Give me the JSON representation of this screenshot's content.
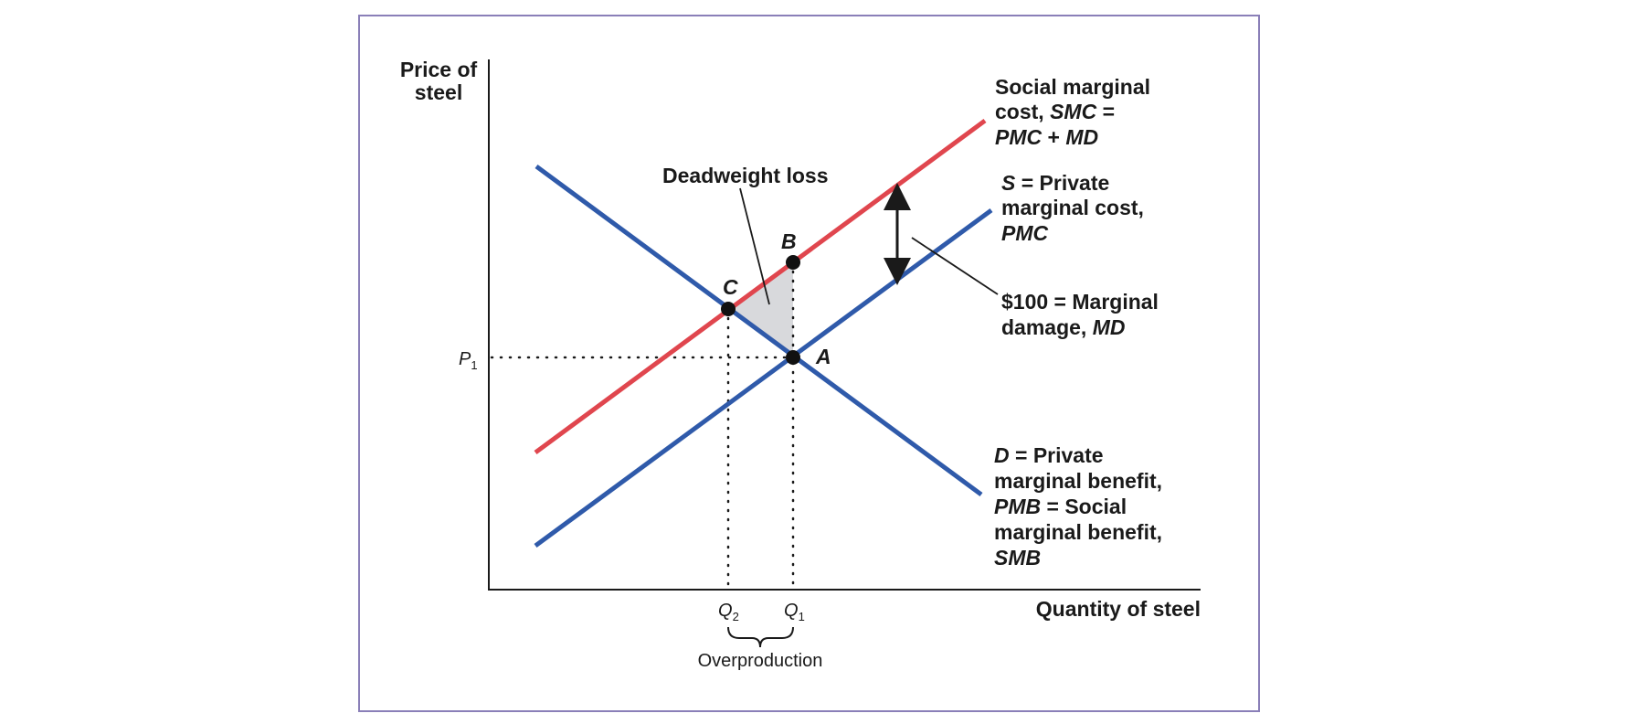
{
  "axes": {
    "y_title_line1": "Price of",
    "y_title_line2": "steel",
    "x_title": "Quantity of steel",
    "p1_main": "P",
    "p1_sub": "1",
    "q2_main": "Q",
    "q2_sub": "2",
    "q1_main": "Q",
    "q1_sub": "1",
    "overproduction": "Overproduction"
  },
  "points": {
    "A": "A",
    "B": "B",
    "C": "C"
  },
  "labels": {
    "deadweight_loss": "Deadweight loss",
    "smc_line1": "Social marginal",
    "smc_line2_a": "cost, ",
    "smc_line2_b": "SMC",
    "smc_line2_c": " =",
    "smc_line3_a": "PMC",
    "smc_line3_b": " + ",
    "smc_line3_c": "MD",
    "s_line1_a": "S",
    "s_line1_b": " = Private",
    "s_line2": "marginal cost,",
    "s_line3": "PMC",
    "md_line1": "$100 = Marginal",
    "md_line2_a": "damage, ",
    "md_line2_b": "MD",
    "d_line1_a": "D",
    "d_line1_b": " = Private",
    "d_line2": "marginal benefit,",
    "d_line3_a": "PMB",
    "d_line3_b": " = Social",
    "d_line4": "marginal benefit,",
    "d_line5": "SMB"
  },
  "colors": {
    "smc_line": "#e0464e",
    "private_lines": "#2f5aaa",
    "deadweight_fill": "#d8d9dc",
    "frame": "#8a7fb8"
  }
}
